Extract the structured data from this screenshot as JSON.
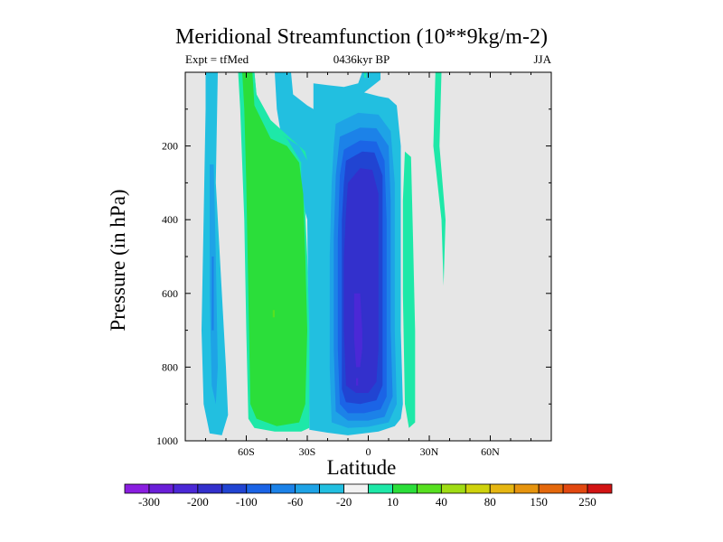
{
  "chart_data": {
    "type": "heatmap",
    "title": "Meridional Streamfunction (10**9kg/m-2)",
    "subtitle_left": "Expt = tfMed",
    "subtitle_center": "0436kyr BP",
    "subtitle_right": "JJA",
    "xlabel": "Latitude",
    "ylabel": "Pressure (in hPa)",
    "xlim": [
      -90,
      90
    ],
    "ylim": [
      1000,
      0
    ],
    "x_ticks": [
      {
        "value": -60,
        "label": "60S"
      },
      {
        "value": -30,
        "label": "30S"
      },
      {
        "value": 0,
        "label": "0"
      },
      {
        "value": 30,
        "label": "30N"
      },
      {
        "value": 60,
        "label": "60N"
      }
    ],
    "y_ticks": [
      {
        "value": 200,
        "label": "200"
      },
      {
        "value": 400,
        "label": "400"
      },
      {
        "value": 600,
        "label": "600"
      },
      {
        "value": 800,
        "label": "800"
      },
      {
        "value": 1000,
        "label": "1000"
      }
    ],
    "background_color": "#e6e6e6",
    "colorbar": {
      "colors": [
        "#8a1ee0",
        "#6a1fd8",
        "#4b28d6",
        "#3330cc",
        "#2144d2",
        "#1b64e6",
        "#1c82e8",
        "#1ea3e6",
        "#22bfe0",
        "#f2f2f2",
        "#1ee8a8",
        "#2bde3a",
        "#57e020",
        "#a0dc14",
        "#cfd20c",
        "#e6b612",
        "#e6940e",
        "#e4680c",
        "#e24810",
        "#d21414"
      ],
      "labels": [
        {
          "index": 1,
          "label": "-300"
        },
        {
          "index": 3,
          "label": "-200"
        },
        {
          "index": 5,
          "label": "-100"
        },
        {
          "index": 7,
          "label": "-60"
        },
        {
          "index": 9,
          "label": "-20"
        },
        {
          "index": 11,
          "label": "10"
        },
        {
          "index": 13,
          "label": "40"
        },
        {
          "index": 15,
          "label": "80"
        },
        {
          "index": 17,
          "label": "150"
        },
        {
          "index": 19,
          "label": "250"
        }
      ]
    },
    "regions": [
      {
        "level": -20,
        "color": "#22bfe0",
        "polygon": [
          [
            -80,
            0
          ],
          [
            -74,
            0
          ],
          [
            -75,
            300
          ],
          [
            -72,
            600
          ],
          [
            -70,
            800
          ],
          [
            -69,
            930
          ],
          [
            -72,
            985
          ],
          [
            -78,
            980
          ],
          [
            -81,
            900
          ],
          [
            -82,
            700
          ],
          [
            -81,
            400
          ],
          [
            -80,
            100
          ]
        ]
      },
      {
        "level": -40,
        "color": "#1ea3e6",
        "polygon": [
          [
            -78,
            250
          ],
          [
            -76,
            250
          ],
          [
            -75,
            500
          ],
          [
            -74,
            800
          ],
          [
            -75,
            900
          ],
          [
            -77,
            850
          ],
          [
            -78,
            600
          ]
        ]
      },
      {
        "level": -60,
        "color": "#1c82e8",
        "polygon": [
          [
            -77,
            500
          ],
          [
            -76,
            500
          ],
          [
            -76,
            700
          ],
          [
            -77,
            700
          ]
        ]
      },
      {
        "level": -20,
        "color": "#22bfe0",
        "polygon": [
          [
            -46,
            0
          ],
          [
            -38,
            0
          ],
          [
            -37,
            60
          ],
          [
            -30,
            90
          ],
          [
            -27,
            100
          ],
          [
            -27,
            30
          ],
          [
            -20,
            35
          ],
          [
            -12,
            40
          ],
          [
            -5,
            30
          ],
          [
            -3,
            0
          ],
          [
            6,
            0
          ],
          [
            6,
            20
          ],
          [
            -2,
            55
          ],
          [
            5,
            65
          ],
          [
            10,
            70
          ],
          [
            14,
            90
          ],
          [
            16,
            200
          ],
          [
            16,
            700
          ],
          [
            17,
            900
          ],
          [
            16,
            940
          ],
          [
            13,
            960
          ],
          [
            5,
            975
          ],
          [
            -10,
            985
          ],
          [
            -20,
            978
          ],
          [
            -29,
            970
          ],
          [
            -30,
            400
          ],
          [
            -35,
            300
          ],
          [
            -42,
            200
          ],
          [
            -45,
            100
          ]
        ]
      },
      {
        "level": 10,
        "color": "#1ee8a8",
        "polygon": [
          [
            -64,
            0
          ],
          [
            -56,
            0
          ],
          [
            -55,
            60
          ],
          [
            -48,
            130
          ],
          [
            -39,
            175
          ],
          [
            -31,
            215
          ],
          [
            -30,
            240
          ],
          [
            -34,
            200
          ],
          [
            -48,
            150
          ],
          [
            -55,
            100
          ]
        ]
      },
      {
        "level": 10,
        "color": "#1ee8a8",
        "polygon": [
          [
            -64,
            0
          ],
          [
            -56,
            0
          ],
          [
            -55,
            60
          ],
          [
            -46,
            155
          ],
          [
            -40,
            180
          ],
          [
            -33,
            245
          ],
          [
            -33,
            300
          ],
          [
            -31,
            380
          ],
          [
            -30,
            500
          ],
          [
            -29,
            700
          ],
          [
            -29,
            965
          ],
          [
            -33,
            975
          ],
          [
            -46,
            975
          ],
          [
            -56,
            965
          ],
          [
            -59,
            940
          ],
          [
            -60,
            700
          ],
          [
            -61,
            400
          ],
          [
            -63,
            100
          ]
        ]
      },
      {
        "level": 20,
        "color": "#2bde3a",
        "polygon": [
          [
            -62,
            0
          ],
          [
            -57,
            0
          ],
          [
            -56,
            90
          ],
          [
            -48,
            180
          ],
          [
            -40,
            200
          ],
          [
            -34,
            245
          ],
          [
            -32,
            330
          ],
          [
            -31,
            500
          ],
          [
            -30,
            700
          ],
          [
            -31,
            900
          ],
          [
            -34,
            950
          ],
          [
            -45,
            960
          ],
          [
            -55,
            940
          ],
          [
            -58,
            900
          ],
          [
            -59,
            600
          ],
          [
            -60,
            300
          ],
          [
            -61,
            100
          ]
        ]
      },
      {
        "level": 30,
        "color": "#57e020",
        "polygon": [
          [
            -47,
            645
          ],
          [
            -46,
            645
          ],
          [
            -46,
            665
          ],
          [
            -47,
            665
          ]
        ]
      },
      {
        "level": 10,
        "color": "#1ee8a8",
        "polygon": [
          [
            -2,
            0
          ],
          [
            -1,
            0
          ],
          [
            -1,
            15
          ],
          [
            -2,
            15
          ]
        ]
      },
      {
        "level": 10,
        "color": "#1ee8a8",
        "polygon": [
          [
            18,
            215
          ],
          [
            21,
            230
          ],
          [
            22,
            450
          ],
          [
            23,
            700
          ],
          [
            23,
            950
          ],
          [
            20,
            965
          ],
          [
            18,
            900
          ],
          [
            17,
            600
          ],
          [
            17,
            350
          ]
        ]
      },
      {
        "level": 10,
        "color": "#1ee8a8",
        "polygon": [
          [
            33,
            0
          ],
          [
            36,
            0
          ],
          [
            35,
            200
          ],
          [
            38,
            400
          ],
          [
            37,
            580
          ],
          [
            36,
            400
          ],
          [
            34,
            300
          ],
          [
            32,
            200
          ]
        ]
      },
      {
        "level": -40,
        "color": "#1ea3e6",
        "polygon": [
          [
            -16,
            140
          ],
          [
            -5,
            110
          ],
          [
            5,
            115
          ],
          [
            11,
            160
          ],
          [
            13,
            300
          ],
          [
            13,
            700
          ],
          [
            14,
            900
          ],
          [
            10,
            950
          ],
          [
            0,
            962
          ],
          [
            -10,
            965
          ],
          [
            -18,
            950
          ],
          [
            -19,
            800
          ],
          [
            -19,
            500
          ],
          [
            -18,
            300
          ],
          [
            -17,
            200
          ]
        ]
      },
      {
        "level": -60,
        "color": "#1c82e8",
        "polygon": [
          [
            -14,
            175
          ],
          [
            -4,
            150
          ],
          [
            4,
            152
          ],
          [
            10,
            200
          ],
          [
            11,
            350
          ],
          [
            11,
            700
          ],
          [
            12,
            880
          ],
          [
            8,
            935
          ],
          [
            0,
            945
          ],
          [
            -10,
            945
          ],
          [
            -16,
            920
          ],
          [
            -17,
            750
          ],
          [
            -17,
            450
          ],
          [
            -16,
            280
          ]
        ]
      },
      {
        "level": -80,
        "color": "#1b64e6",
        "polygon": [
          [
            -12,
            210
          ],
          [
            -4,
            185
          ],
          [
            4,
            188
          ],
          [
            8,
            240
          ],
          [
            9,
            400
          ],
          [
            9,
            750
          ],
          [
            9,
            880
          ],
          [
            6,
            915
          ],
          [
            -2,
            925
          ],
          [
            -10,
            925
          ],
          [
            -14,
            900
          ],
          [
            -15,
            750
          ],
          [
            -15,
            450
          ],
          [
            -14,
            280
          ]
        ]
      },
      {
        "level": -100,
        "color": "#2144d2",
        "polygon": [
          [
            -11,
            240
          ],
          [
            -3,
            215
          ],
          [
            3,
            218
          ],
          [
            7,
            280
          ],
          [
            7,
            450
          ],
          [
            7,
            700
          ],
          [
            7,
            850
          ],
          [
            4,
            890
          ],
          [
            -4,
            900
          ],
          [
            -11,
            895
          ],
          [
            -13,
            860
          ],
          [
            -13,
            600
          ],
          [
            -13,
            400
          ],
          [
            -12,
            300
          ]
        ]
      },
      {
        "level": -150,
        "color": "#3330cc",
        "polygon": [
          [
            -10,
            300
          ],
          [
            -4,
            260
          ],
          [
            2,
            265
          ],
          [
            5,
            330
          ],
          [
            5,
            500
          ],
          [
            5,
            750
          ],
          [
            4,
            840
          ],
          [
            0,
            870
          ],
          [
            -6,
            870
          ],
          [
            -11,
            850
          ],
          [
            -12,
            700
          ],
          [
            -12,
            500
          ],
          [
            -11,
            380
          ]
        ]
      },
      {
        "level": -200,
        "color": "#4b28d6",
        "polygon": [
          [
            -7,
            600
          ],
          [
            -4,
            600
          ],
          [
            -3,
            700
          ],
          [
            -3,
            750
          ],
          [
            -4,
            800
          ],
          [
            -6,
            800
          ],
          [
            -7,
            720
          ]
        ]
      },
      {
        "level": -200,
        "color": "#4b28d6",
        "polygon": [
          [
            -6,
            830
          ],
          [
            -5,
            830
          ],
          [
            -5,
            850
          ],
          [
            -6,
            850
          ]
        ]
      }
    ]
  }
}
